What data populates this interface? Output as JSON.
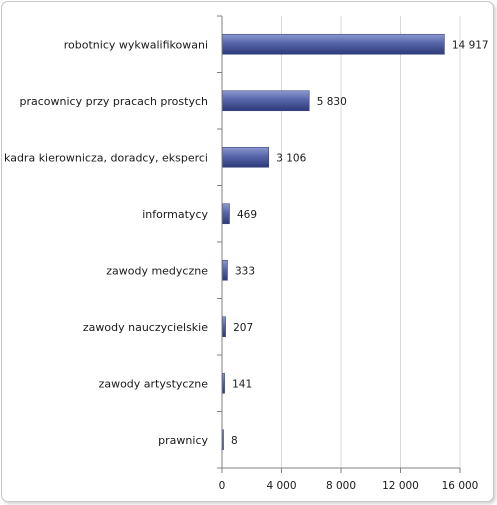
{
  "chart_data": {
    "type": "bar",
    "orientation": "horizontal",
    "categories": [
      "robotnicy wykwalifikowani",
      "pracownicy przy pracach prostych",
      "kadra kierownicza, doradcy, eksperci",
      "informatycy",
      "zawody medyczne",
      "zawody nauczycielskie",
      "zawody artystyczne",
      "prawnicy"
    ],
    "values": [
      14917,
      5830,
      3106,
      469,
      333,
      207,
      141,
      8
    ],
    "value_labels": [
      "14 917",
      "5 830",
      "3 106",
      "469",
      "333",
      "207",
      "141",
      "8"
    ],
    "xlim": [
      0,
      16000
    ],
    "xticks": [
      0,
      4000,
      8000,
      12000,
      16000
    ],
    "xtick_labels": [
      "0",
      "4 000",
      "8 000",
      "12 000",
      "16 000"
    ],
    "grid": "vertical",
    "legend": "none",
    "colors": {
      "bar_light": "#8c98d0",
      "bar_mid": "#5666aa",
      "bar_dark": "#2e3a78",
      "grid": "#d9d9d9",
      "axis": "#808080"
    }
  }
}
